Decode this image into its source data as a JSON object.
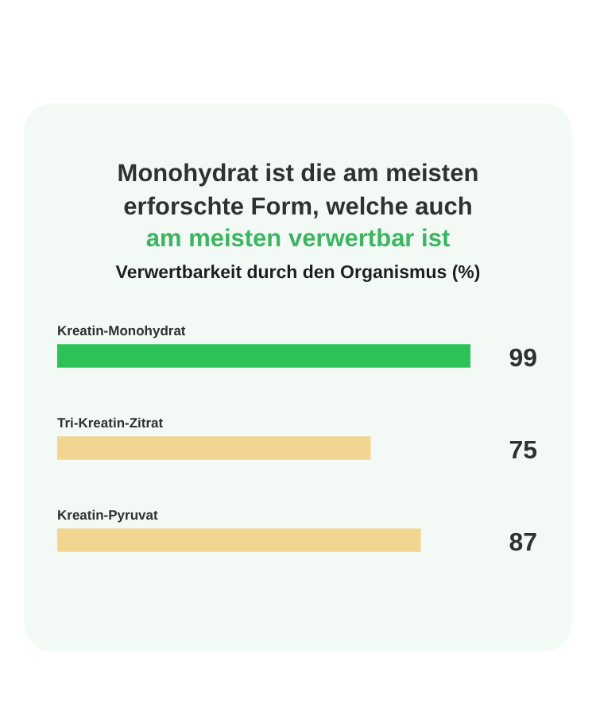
{
  "chart_data": {
    "type": "bar",
    "orientation": "horizontal",
    "title": "Monohydrat ist die am meisten erforschte Form, welche auch",
    "subtitle": "am meisten verwertbar ist",
    "xlabel": "Verwertbarkeit durch den Organismus (%)",
    "categories": [
      "Kreatin-Monohydrat",
      "Tri-Kreatin-Zitrat",
      "Kreatin-Pyruvat"
    ],
    "values": [
      99,
      75,
      87
    ],
    "colors": [
      "#2dc258",
      "#f3d592",
      "#f3d592"
    ],
    "data_labels": true,
    "legend": false
  }
}
